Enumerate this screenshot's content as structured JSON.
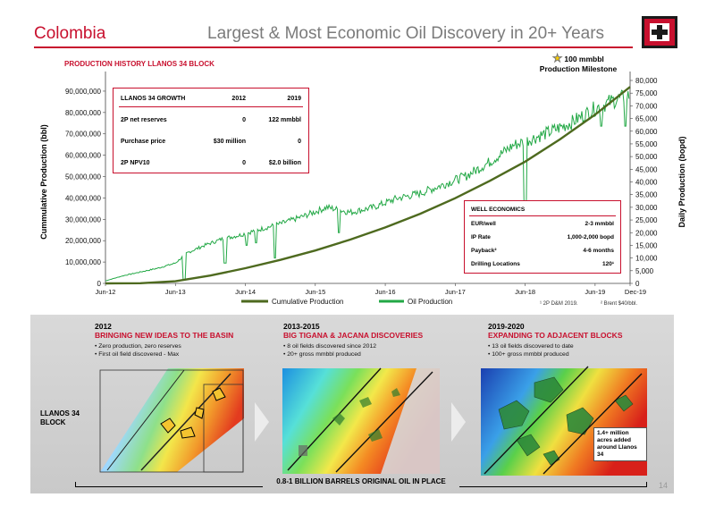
{
  "header": {
    "country": "Colombia",
    "title": "Largest & Most Economic Oil Discovery in 20+ Years",
    "page": "14"
  },
  "production": {
    "title": "PRODUCTION HISTORY LLANOS 34 BLOCK",
    "milestone_line1": "100 mmbbl",
    "milestone_line2": "Production Milestone"
  },
  "colors": {
    "accent": "#c8102e",
    "cumulative": "#4e6a1f",
    "daily": "#22a845"
  },
  "growth": {
    "title": "LLANOS 34 GROWTH",
    "col1": "2012",
    "col2": "2019",
    "rows": [
      {
        "label": "2P net reserves",
        "v2012": "0",
        "v2019": "122 mmbbl"
      },
      {
        "label": "Purchase price",
        "v2012": "$30 million",
        "v2019": "0"
      },
      {
        "label": "2P NPV10",
        "v2012": "0",
        "v2019": "$2.0 billion"
      }
    ]
  },
  "well": {
    "title": "WELL ECONOMICS",
    "rows": [
      {
        "label": "EUR/well",
        "value": "2-3 mmbbl"
      },
      {
        "label": "IP Rate",
        "value": "1,000-2,000 bopd"
      },
      {
        "label": "Payback²",
        "value": "4-6 months"
      },
      {
        "label": "Drilling Locations",
        "value": "120¹"
      }
    ]
  },
  "footnotes": {
    "f1": "¹ 2P D&M 2019.",
    "f2": "² Brent $40/bbl."
  },
  "chart_data": {
    "type": "line",
    "ylabel": "Cummulative Production (bbl)",
    "y2label": "Daily Production (bopd)",
    "ylim": [
      0,
      95000000
    ],
    "y2lim": [
      0,
      80000
    ],
    "y_ticks": [
      "0",
      "10,000,000",
      "20,000,000",
      "30,000,000",
      "40,000,000",
      "50,000,000",
      "60,000,000",
      "70,000,000",
      "80,000,000",
      "90,000,000"
    ],
    "y2_ticks": [
      "0",
      "5,000",
      "10,000",
      "15,000",
      "20,000",
      "25,000",
      "30,000",
      "35,000",
      "40,000",
      "45,000",
      "50,000",
      "55,000",
      "60,000",
      "65,000",
      "70,000",
      "75,000",
      "80,000"
    ],
    "x_ticks": [
      "Jun-12",
      "Jun-13",
      "Jun-14",
      "Jun-15",
      "Jun-16",
      "Jun-17",
      "Jun-18",
      "Jun-19",
      "Dec-19"
    ],
    "x_months": [
      0,
      12,
      24,
      36,
      48,
      60,
      72,
      84,
      90
    ],
    "legend": "bottom",
    "series": [
      {
        "name": "Cumulative Production",
        "axis": "left",
        "months": [
          0,
          6,
          12,
          18,
          24,
          30,
          36,
          42,
          48,
          54,
          60,
          66,
          72,
          78,
          84,
          90
        ],
        "values": [
          0,
          100000,
          1000000,
          3700000,
          7100000,
          11000000,
          15400000,
          20500000,
          26200000,
          32600000,
          39900000,
          48100000,
          57000000,
          67500000,
          79000000,
          92000000
        ]
      },
      {
        "name": "Oil Production",
        "axis": "right",
        "months": [
          0,
          3,
          6,
          9,
          12,
          14,
          17,
          20,
          23,
          26,
          30,
          34,
          38,
          42,
          46,
          50,
          54,
          58,
          62,
          66,
          70,
          72,
          76,
          80,
          84,
          87,
          90
        ],
        "values": [
          1000,
          3000,
          4500,
          6000,
          8000,
          12000,
          15000,
          17500,
          19000,
          21000,
          23500,
          26500,
          30000,
          28000,
          30000,
          33500,
          35500,
          39000,
          42500,
          48000,
          54500,
          56000,
          59500,
          63500,
          69000,
          72000,
          74000
        ]
      }
    ],
    "annotations": [
      "100 mmbbl Production Milestone"
    ]
  },
  "panels": [
    {
      "year": "2012",
      "title": "BRINGING NEW IDEAS TO THE BASIN",
      "bullets": [
        "Zero production, zero reserves",
        "First oil field discovered - Max"
      ]
    },
    {
      "year": "2013-2015",
      "title": "BIG TIGANA & JACANA DISCOVERIES",
      "bullets": [
        "8 oil fields discovered since 2012",
        "20+ gross mmbbl produced"
      ]
    },
    {
      "year": "2019-2020",
      "title": "EXPANDING TO ADJACENT BLOCKS",
      "bullets": [
        "13 oil fields discovered to date",
        "100+ gross mmbbl produced"
      ]
    }
  ],
  "block_label_1": "LLANOS 34",
  "block_label_2": "BLOCK",
  "acres_note": "1.4+ million acres added around Llanos 34",
  "ooip": "0.8-1 BILLION BARRELS ORIGINAL OIL IN PLACE"
}
